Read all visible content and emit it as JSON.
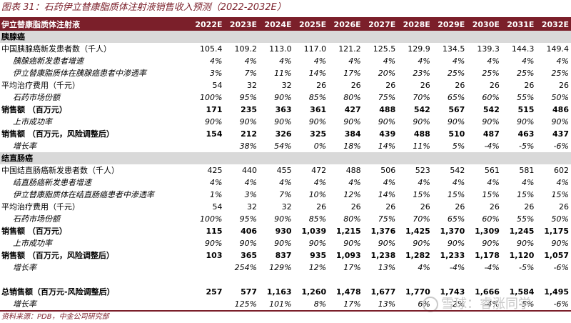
{
  "title": "图表 31：石药伊立替康脂质体注射液销售收入预测（2022-2032E）",
  "header": {
    "label": "伊立替康脂质体注射液",
    "years": [
      "2022E",
      "2023E",
      "2024E",
      "2025E",
      "2026E",
      "2027E",
      "2028E",
      "2029E",
      "2030E",
      "2031E",
      "2032E"
    ]
  },
  "section1": "胰腺癌",
  "section2": "结直肠癌",
  "rows1": [
    {
      "label": "中国胰腺癌新发患者数（千人）",
      "values": [
        "105.4",
        "109.2",
        "113.0",
        "117.0",
        "121.2",
        "125.5",
        "129.9",
        "134.5",
        "139.3",
        "144.3",
        "149.4"
      ]
    },
    {
      "label": "胰腺癌新发患者增速",
      "values": [
        "4%",
        "4%",
        "4%",
        "4%",
        "4%",
        "4%",
        "4%",
        "4%",
        "4%",
        "4%",
        "4%"
      ]
    },
    {
      "label": "伊立替康脂质体在胰腺癌患者中渗透率",
      "values": [
        "3%",
        "7%",
        "11%",
        "14%",
        "17%",
        "20%",
        "23%",
        "25%",
        "25%",
        "25%",
        "25%"
      ]
    },
    {
      "label": "平均治疗费用（千元）",
      "values": [
        "54",
        "32",
        "32",
        "26",
        "26",
        "26",
        "26",
        "26",
        "26",
        "26",
        "26"
      ]
    },
    {
      "label": "石药市场份额",
      "values": [
        "100%",
        "95%",
        "90%",
        "85%",
        "80%",
        "75%",
        "70%",
        "65%",
        "60%",
        "55%",
        "50%"
      ]
    },
    {
      "label": "销售额 （百万元）",
      "values": [
        "171",
        "235",
        "363",
        "361",
        "427",
        "488",
        "542",
        "567",
        "542",
        "515",
        "486"
      ]
    },
    {
      "label": "上市成功率",
      "values": [
        "90%",
        "90%",
        "90%",
        "90%",
        "90%",
        "90%",
        "90%",
        "90%",
        "90%",
        "90%",
        "90%"
      ]
    },
    {
      "label": "销售额 （百万元，风险调整后）",
      "values": [
        "154",
        "212",
        "326",
        "325",
        "384",
        "439",
        "488",
        "510",
        "487",
        "463",
        "437"
      ]
    },
    {
      "label": "增长率",
      "values": [
        "",
        "38%",
        "54%",
        "0%",
        "18%",
        "14%",
        "11%",
        "5%",
        "-4%",
        "-5%",
        "-6%"
      ]
    }
  ],
  "rows2": [
    {
      "label": "中国结直肠癌新发患者数（千人）",
      "values": [
        "425",
        "440",
        "455",
        "472",
        "488",
        "506",
        "523",
        "542",
        "561",
        "581",
        "602"
      ]
    },
    {
      "label": "结直肠癌新发患者增速",
      "values": [
        "4%",
        "4%",
        "4%",
        "4%",
        "4%",
        "4%",
        "4%",
        "4%",
        "4%",
        "4%",
        "4%"
      ]
    },
    {
      "label": "伊立替康脂质体在结直肠癌患者中渗透率",
      "values": [
        "1%",
        "3%",
        "7%",
        "10%",
        "12%",
        "14%",
        "15%",
        "15%",
        "15%",
        "15%",
        "15%"
      ]
    },
    {
      "label": "平均治疗费用（千元）",
      "values": [
        "54",
        "32",
        "32",
        "26",
        "26",
        "26",
        "26",
        "26",
        "26",
        "26",
        "26"
      ]
    },
    {
      "label": "石药市场份额",
      "values": [
        "100%",
        "95%",
        "90%",
        "85%",
        "80%",
        "75%",
        "70%",
        "65%",
        "60%",
        "55%",
        "50%"
      ]
    },
    {
      "label": "销售额 （百万元）",
      "values": [
        "115",
        "406",
        "930",
        "1,039",
        "1,215",
        "1,376",
        "1,425",
        "1,370",
        "1,309",
        "1,245",
        "1,175"
      ]
    },
    {
      "label": "上市成功率",
      "values": [
        "90%",
        "90%",
        "90%",
        "90%",
        "90%",
        "90%",
        "90%",
        "90%",
        "90%",
        "90%",
        "90%"
      ]
    },
    {
      "label": "销售额 （百万元，风险调整后）",
      "values": [
        "103",
        "365",
        "837",
        "935",
        "1,093",
        "1,238",
        "1,282",
        "1,233",
        "1,178",
        "1,120",
        "1,057"
      ]
    },
    {
      "label": "增长率",
      "values": [
        "",
        "254%",
        "129%",
        "12%",
        "17%",
        "13%",
        "4%",
        "-4%",
        "-4%",
        "-5%",
        "-6%"
      ]
    }
  ],
  "totals": [
    {
      "label": "总销售额（百万元-风险调整后）",
      "values": [
        "257",
        "577",
        "1,163",
        "1,260",
        "1,478",
        "1,677",
        "1,770",
        "1,743",
        "1,666",
        "1,584",
        "1,495"
      ]
    },
    {
      "label": "增长率",
      "values": [
        "",
        "125%",
        "101%",
        "8%",
        "17%",
        "13%",
        "6%",
        "-2%",
        "-4%",
        "-5%",
        "-6%"
      ]
    }
  ],
  "footer": "资料来源：PDB，中金公司研究部",
  "watermark": "雪球：睿涨同学",
  "colors": {
    "accent": "#7b1f2a",
    "section_bg": "#d9d9d9"
  }
}
